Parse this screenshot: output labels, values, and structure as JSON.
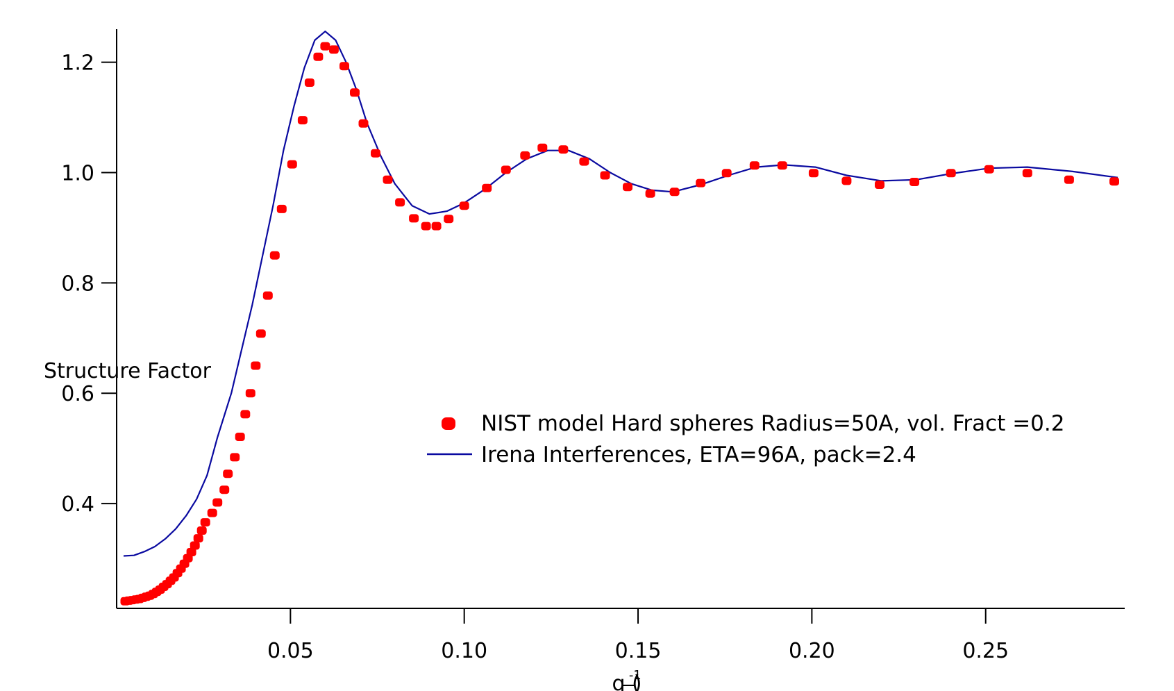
{
  "chart_data": {
    "type": "scatter",
    "title": "",
    "xlabel": "q (",
    "xlabel_unit": "_",
    "xlabel_sup": "-1",
    "xlabel_close": ")",
    "ylabel": "Structure Factor",
    "xlim": [
      0.0,
      0.29
    ],
    "ylim": [
      0.21,
      1.26
    ],
    "xticks": [
      {
        "value": 0.05,
        "label": "0.05"
      },
      {
        "value": 0.1,
        "label": "0.10"
      },
      {
        "value": 0.15,
        "label": "0.15"
      },
      {
        "value": 0.2,
        "label": "0.20"
      },
      {
        "value": 0.25,
        "label": "0.25"
      }
    ],
    "yticks": [
      {
        "value": 0.4,
        "label": "0.4"
      },
      {
        "value": 0.6,
        "label": "0.6"
      },
      {
        "value": 0.8,
        "label": "0.8"
      },
      {
        "value": 1.0,
        "label": "1.0"
      },
      {
        "value": 1.2,
        "label": "1.2"
      }
    ],
    "grid": false,
    "legend_position": "center-right",
    "series": [
      {
        "name": "NIST model Hard spheres Radius=50A, vol. Fract =0.2",
        "kind": "markers",
        "color": "#ff0000",
        "points": [
          [
            0.0025,
            0.223
          ],
          [
            0.0035,
            0.224
          ],
          [
            0.0045,
            0.225
          ],
          [
            0.0055,
            0.226
          ],
          [
            0.0065,
            0.227
          ],
          [
            0.0075,
            0.229
          ],
          [
            0.0085,
            0.231
          ],
          [
            0.0095,
            0.233
          ],
          [
            0.0105,
            0.236
          ],
          [
            0.0115,
            0.24
          ],
          [
            0.0125,
            0.244
          ],
          [
            0.0135,
            0.249
          ],
          [
            0.0145,
            0.254
          ],
          [
            0.0155,
            0.26
          ],
          [
            0.0165,
            0.266
          ],
          [
            0.0175,
            0.274
          ],
          [
            0.0185,
            0.282
          ],
          [
            0.0195,
            0.291
          ],
          [
            0.0205,
            0.301
          ],
          [
            0.0215,
            0.312
          ],
          [
            0.0225,
            0.324
          ],
          [
            0.0235,
            0.337
          ],
          [
            0.0245,
            0.351
          ],
          [
            0.0255,
            0.366
          ],
          [
            0.0275,
            0.383
          ],
          [
            0.029,
            0.402
          ],
          [
            0.031,
            0.425
          ],
          [
            0.032,
            0.454
          ],
          [
            0.034,
            0.484
          ],
          [
            0.0355,
            0.521
          ],
          [
            0.037,
            0.562
          ],
          [
            0.0385,
            0.6
          ],
          [
            0.04,
            0.65
          ],
          [
            0.0415,
            0.708
          ],
          [
            0.0435,
            0.777
          ],
          [
            0.0455,
            0.85
          ],
          [
            0.0475,
            0.934
          ],
          [
            0.0505,
            1.015
          ],
          [
            0.0535,
            1.095
          ],
          [
            0.0555,
            1.163
          ],
          [
            0.058,
            1.21
          ],
          [
            0.06,
            1.229
          ],
          [
            0.0625,
            1.223
          ],
          [
            0.0655,
            1.193
          ],
          [
            0.0685,
            1.145
          ],
          [
            0.071,
            1.089
          ],
          [
            0.0745,
            1.035
          ],
          [
            0.078,
            0.987
          ],
          [
            0.0815,
            0.946
          ],
          [
            0.0855,
            0.917
          ],
          [
            0.089,
            0.903
          ],
          [
            0.092,
            0.903
          ],
          [
            0.0955,
            0.916
          ],
          [
            0.1,
            0.94
          ],
          [
            0.1065,
            0.972
          ],
          [
            0.112,
            1.005
          ],
          [
            0.1175,
            1.031
          ],
          [
            0.1225,
            1.045
          ],
          [
            0.1285,
            1.042
          ],
          [
            0.1345,
            1.02
          ],
          [
            0.1405,
            0.995
          ],
          [
            0.147,
            0.974
          ],
          [
            0.1535,
            0.962
          ],
          [
            0.1605,
            0.965
          ],
          [
            0.168,
            0.981
          ],
          [
            0.1755,
            0.999
          ],
          [
            0.1835,
            1.013
          ],
          [
            0.1915,
            1.013
          ],
          [
            0.2005,
            0.999
          ],
          [
            0.21,
            0.985
          ],
          [
            0.2195,
            0.978
          ],
          [
            0.2295,
            0.983
          ],
          [
            0.24,
            0.999
          ],
          [
            0.251,
            1.006
          ],
          [
            0.262,
            0.999
          ],
          [
            0.274,
            0.987
          ],
          [
            0.287,
            0.984
          ]
        ]
      },
      {
        "name": "Irena Interferences, ETA=96A, pack=2.4",
        "kind": "line",
        "color": "#0a0aa0",
        "points": [
          [
            0.002,
            0.305
          ],
          [
            0.005,
            0.306
          ],
          [
            0.008,
            0.313
          ],
          [
            0.011,
            0.322
          ],
          [
            0.014,
            0.336
          ],
          [
            0.017,
            0.354
          ],
          [
            0.02,
            0.378
          ],
          [
            0.023,
            0.408
          ],
          [
            0.026,
            0.451
          ],
          [
            0.029,
            0.52
          ],
          [
            0.031,
            0.56
          ],
          [
            0.033,
            0.6
          ],
          [
            0.036,
            0.68
          ],
          [
            0.039,
            0.76
          ],
          [
            0.042,
            0.85
          ],
          [
            0.045,
            0.94
          ],
          [
            0.048,
            1.04
          ],
          [
            0.051,
            1.12
          ],
          [
            0.054,
            1.19
          ],
          [
            0.057,
            1.24
          ],
          [
            0.06,
            1.256
          ],
          [
            0.063,
            1.24
          ],
          [
            0.066,
            1.2
          ],
          [
            0.069,
            1.15
          ],
          [
            0.072,
            1.09
          ],
          [
            0.076,
            1.03
          ],
          [
            0.08,
            0.98
          ],
          [
            0.085,
            0.94
          ],
          [
            0.09,
            0.925
          ],
          [
            0.095,
            0.93
          ],
          [
            0.1,
            0.945
          ],
          [
            0.106,
            0.97
          ],
          [
            0.112,
            1.0
          ],
          [
            0.118,
            1.025
          ],
          [
            0.124,
            1.04
          ],
          [
            0.13,
            1.04
          ],
          [
            0.136,
            1.025
          ],
          [
            0.142,
            1.0
          ],
          [
            0.148,
            0.98
          ],
          [
            0.154,
            0.968
          ],
          [
            0.16,
            0.965
          ],
          [
            0.168,
            0.978
          ],
          [
            0.176,
            0.995
          ],
          [
            0.184,
            1.01
          ],
          [
            0.192,
            1.014
          ],
          [
            0.201,
            1.01
          ],
          [
            0.21,
            0.995
          ],
          [
            0.22,
            0.985
          ],
          [
            0.23,
            0.987
          ],
          [
            0.24,
            0.998
          ],
          [
            0.251,
            1.008
          ],
          [
            0.262,
            1.01
          ],
          [
            0.275,
            1.002
          ],
          [
            0.288,
            0.991
          ]
        ]
      }
    ]
  }
}
